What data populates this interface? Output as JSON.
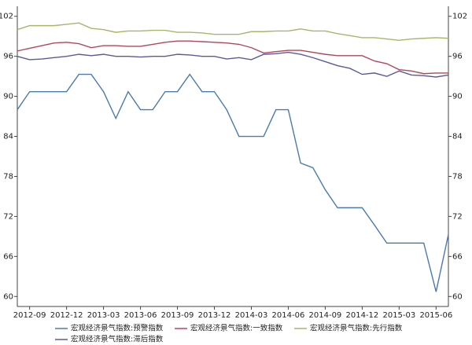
{
  "chart_data": {
    "type": "line",
    "categories": [
      null,
      "2012-09",
      null,
      null,
      "2012-12",
      null,
      null,
      "2013-03",
      null,
      null,
      "2013-06",
      null,
      null,
      "2013-09",
      null,
      null,
      "2013-12",
      null,
      null,
      "2014-03",
      null,
      null,
      "2014-06",
      null,
      null,
      "2014-09",
      null,
      null,
      "2014-12",
      null,
      null,
      "2015-03",
      null,
      null,
      "2015-06",
      null
    ],
    "series": [
      {
        "name": "宏观经济景气指数:预警指数",
        "color": "#4a7ab0",
        "values": [
          88,
          90.7,
          90.7,
          90.7,
          90.7,
          93.3,
          93.3,
          90.7,
          86.7,
          90.7,
          88,
          88,
          90.7,
          90.7,
          93.3,
          90.7,
          90.7,
          88,
          84,
          84,
          84,
          88,
          88,
          80,
          79.3,
          76,
          73.3,
          73.3,
          73.3,
          70.7,
          68,
          68,
          68,
          68,
          60.7,
          69.3
        ]
      },
      {
        "name": "宏观经济景气指数:一致指数",
        "color": "#b0485a",
        "values": [
          96.8,
          97.2,
          97.6,
          98.0,
          98.1,
          97.9,
          97.3,
          97.6,
          97.6,
          97.5,
          97.5,
          97.8,
          98.1,
          98.3,
          98.3,
          98.2,
          98.1,
          98.0,
          97.8,
          97.3,
          96.5,
          96.7,
          96.9,
          96.9,
          96.6,
          96.3,
          96.1,
          96.1,
          96.1,
          95.3,
          94.9,
          94.0,
          93.8,
          93.4,
          93.5,
          93.5
        ]
      },
      {
        "name": "宏观经济景气指数:先行指数",
        "color": "#aab56a",
        "values": [
          100.0,
          100.6,
          100.6,
          100.6,
          100.8,
          101.0,
          100.2,
          100.0,
          99.6,
          99.8,
          99.8,
          99.9,
          99.9,
          99.6,
          99.6,
          99.5,
          99.3,
          99.3,
          99.3,
          99.7,
          99.7,
          99.8,
          99.8,
          100.1,
          99.8,
          99.8,
          99.4,
          99.1,
          98.8,
          98.8,
          98.6,
          98.4,
          98.6,
          98.7,
          98.8,
          98.7
        ]
      },
      {
        "name": "宏观经济景气指数:滞后指数",
        "color": "#5a5a9a",
        "values": [
          96.0,
          95.5,
          95.6,
          95.8,
          96.0,
          96.3,
          96.1,
          96.3,
          96.0,
          96.0,
          95.9,
          96.0,
          96.0,
          96.3,
          96.2,
          96.0,
          96.0,
          95.6,
          95.8,
          95.5,
          96.3,
          96.4,
          96.6,
          96.3,
          95.8,
          95.2,
          94.6,
          94.2,
          93.3,
          93.5,
          93.0,
          93.8,
          93.2,
          93.1,
          92.9,
          93.2
        ]
      }
    ],
    "ylim": [
      58.5,
      103.5
    ],
    "yticks": [
      60,
      66,
      72,
      78,
      84,
      90,
      96,
      102
    ],
    "y2lim": [
      58.5,
      103.5
    ],
    "y2ticks": [
      60,
      66,
      72,
      78,
      84,
      90,
      96,
      102
    ]
  }
}
